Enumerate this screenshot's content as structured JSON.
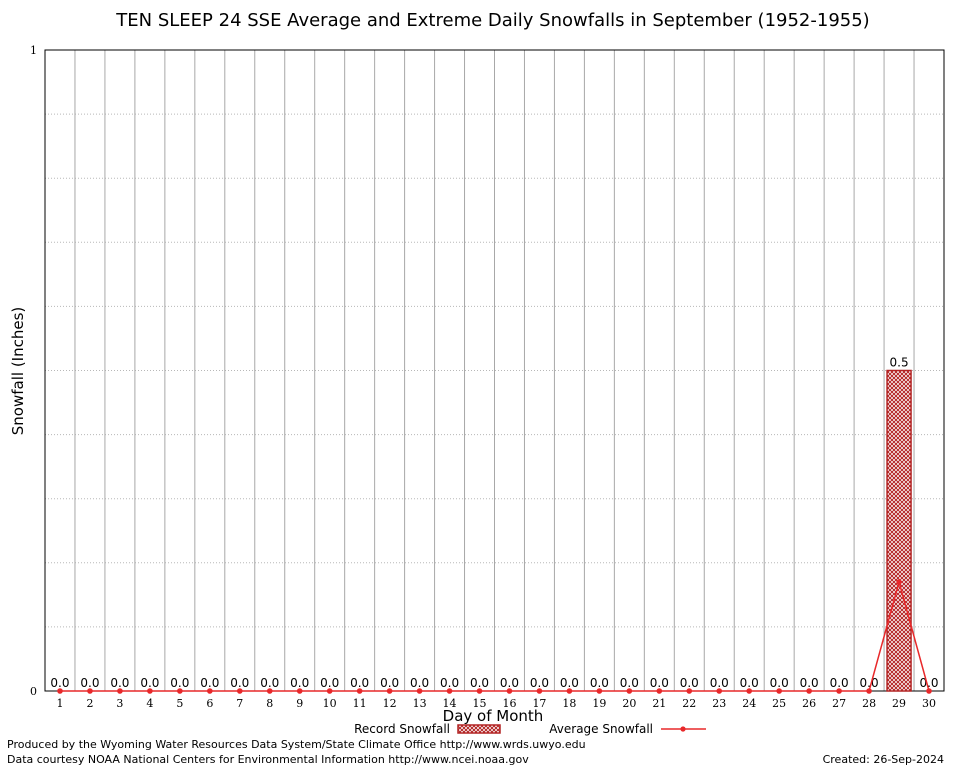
{
  "chart_data": {
    "type": "bar",
    "title": "TEN SLEEP 24 SSE Average and Extreme Daily Snowfalls in September (1952-1955)",
    "xlabel": "Day of Month",
    "ylabel": "Snowfall (Inches)",
    "ylim": [
      0,
      1
    ],
    "y_ticks": [
      "0",
      "1"
    ],
    "grid": true,
    "categories": [
      "1",
      "2",
      "3",
      "4",
      "5",
      "6",
      "7",
      "8",
      "9",
      "10",
      "11",
      "12",
      "13",
      "14",
      "15",
      "16",
      "17",
      "18",
      "19",
      "20",
      "21",
      "22",
      "23",
      "24",
      "25",
      "26",
      "27",
      "28",
      "29",
      "30"
    ],
    "series": [
      {
        "name": "Record Snowfall",
        "type": "bar",
        "color": "#b22222",
        "values": [
          0,
          0,
          0,
          0,
          0,
          0,
          0,
          0,
          0,
          0,
          0,
          0,
          0,
          0,
          0,
          0,
          0,
          0,
          0,
          0,
          0,
          0,
          0,
          0,
          0,
          0,
          0,
          0,
          0.5,
          0
        ],
        "labels": [
          "0.0",
          "0.0",
          "0.0",
          "0.0",
          "0.0",
          "0.0",
          "0.0",
          "0.0",
          "0.0",
          "0.0",
          "0.0",
          "0.0",
          "0.0",
          "0.0",
          "0.0",
          "0.0",
          "0.0",
          "0.0",
          "0.0",
          "0.0",
          "0.0",
          "0.0",
          "0.0",
          "0.0",
          "0.0",
          "0.0",
          "0.0",
          "0.0",
          "0.5",
          "0.0"
        ]
      },
      {
        "name": "Average Snowfall",
        "type": "line",
        "color": "#e8282a",
        "values": [
          0,
          0,
          0,
          0,
          0,
          0,
          0,
          0,
          0,
          0,
          0,
          0,
          0,
          0,
          0,
          0,
          0,
          0,
          0,
          0,
          0,
          0,
          0,
          0,
          0,
          0,
          0,
          0,
          0.17,
          0
        ]
      }
    ],
    "legend_position": "bottom"
  },
  "footer": {
    "produced_by": "Produced by the Wyoming Water Resources Data System/State Climate Office http://www.wrds.uwyo.edu",
    "data_courtesy": "Data courtesy NOAA National Centers for Environmental Information http://www.ncei.noaa.gov",
    "created": "Created:  26-Sep-2024"
  }
}
